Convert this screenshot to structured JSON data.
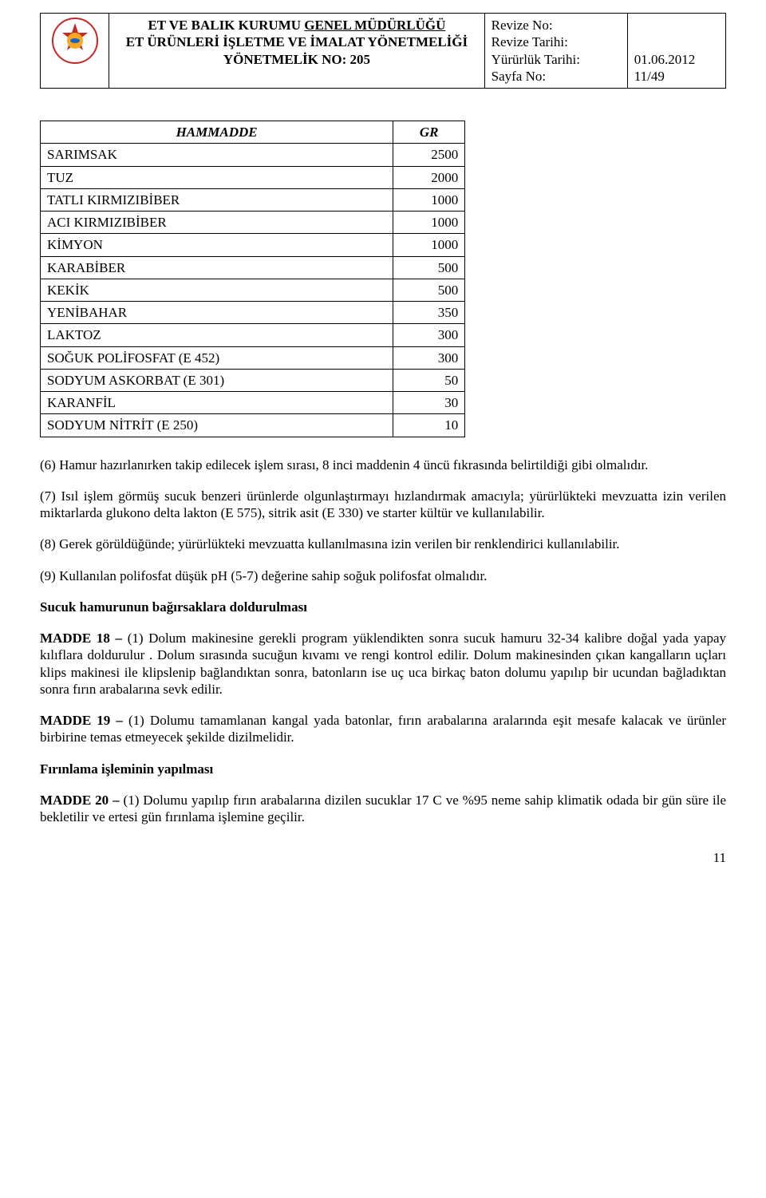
{
  "header": {
    "org_line1": "ET VE BALIK KURUMU ",
    "org_underline": "GENEL MÜDÜRLÜĞÜ",
    "doc_line1": "ET ÜRÜNLERİ İŞLETME VE İMALAT YÖNETMELİĞİ",
    "doc_line2": "YÖNETMELİK NO: 205",
    "meta": {
      "revize_no_label": "Revize No:",
      "revize_tarihi_label": "Revize Tarihi:",
      "yururluk_label": "Yürürlük Tarihi:",
      "sayfa_label": "Sayfa No:",
      "yururluk_value": "01.06.2012",
      "sayfa_value": "11/49"
    }
  },
  "table": {
    "col_name": "HAMMADDE",
    "col_val": "GR",
    "rows": [
      {
        "name": "SARIMSAK",
        "val": "2500"
      },
      {
        "name": "TUZ",
        "val": "2000"
      },
      {
        "name": "TATLI KIRMIZIBİBER",
        "val": "1000"
      },
      {
        "name": "ACI KIRMIZIBİBER",
        "val": "1000"
      },
      {
        "name": "KİMYON",
        "val": "1000"
      },
      {
        "name": "KARABİBER",
        "val": "500"
      },
      {
        "name": "KEKİK",
        "val": "500"
      },
      {
        "name": "YENİBAHAR",
        "val": "350"
      },
      {
        "name": "LAKTOZ",
        "val": "300"
      },
      {
        "name": "SOĞUK POLİFOSFAT (E 452)",
        "val": "300"
      },
      {
        "name": "SODYUM ASKORBAT (E 301)",
        "val": "50"
      },
      {
        "name": "KARANFİL",
        "val": "30"
      },
      {
        "name": "SODYUM NİTRİT (E 250)",
        "val": "10"
      }
    ]
  },
  "body": {
    "p6": "(6) Hamur hazırlanırken takip edilecek işlem sırası, 8 inci maddenin 4 üncü fıkrasında belirtildiği gibi olmalıdır.",
    "p7": "(7) Isıl işlem görmüş sucuk benzeri ürünlerde olgunlaştırmayı hızlandırmak amacıyla; yürürlükteki mevzuatta izin verilen miktarlarda glukono delta lakton (E 575), sitrik asit (E 330) ve starter kültür ve  kullanılabilir.",
    "p8": "(8) Gerek görüldüğünde; yürürlükteki mevzuatta kullanılmasına izin verilen bir renklendirici kullanılabilir.",
    "p9": "(9) Kullanılan polifosfat düşük pH (5-7) değerine sahip soğuk polifosfat olmalıdır.",
    "sec1_title": "Sucuk hamurunun bağırsaklara doldurulması",
    "m18_label": "MADDE 18 – ",
    "m18_text": "(1) Dolum makinesine gerekli program yüklendikten sonra sucuk hamuru 32-34 kalibre doğal yada yapay kılıflara doldurulur . Dolum sırasında  sucuğun kıvamı ve rengi kontrol edilir. Dolum makinesinden çıkan kangalların uçları klips makinesi ile klipslenip bağlandıktan sonra, batonların ise uç uca birkaç baton dolumu yapılıp bir ucundan bağladıktan sonra fırın arabalarına sevk edilir.",
    "m19_label": "MADDE 19 – ",
    "m19_text": "(1) Dolumu tamamlanan kangal yada batonlar, fırın arabalarına aralarında eşit mesafe kalacak ve ürünler birbirine temas etmeyecek şekilde dizilmelidir.",
    "sec2_title": "Fırınlama işleminin yapılması",
    "m20_label": "MADDE 20 – ",
    "m20_text": "(1) Dolumu yapılıp fırın arabalarına dizilen sucuklar 17 C ve %95 neme sahip klimatik odada bir gün süre ile bekletilir ve ertesi gün fırınlama işlemine geçilir."
  },
  "page_number": "11",
  "colors": {
    "text": "#000000",
    "bg": "#ffffff",
    "logo_red": "#c62828",
    "logo_yellow": "#f9a825",
    "logo_blue": "#1565c0"
  }
}
